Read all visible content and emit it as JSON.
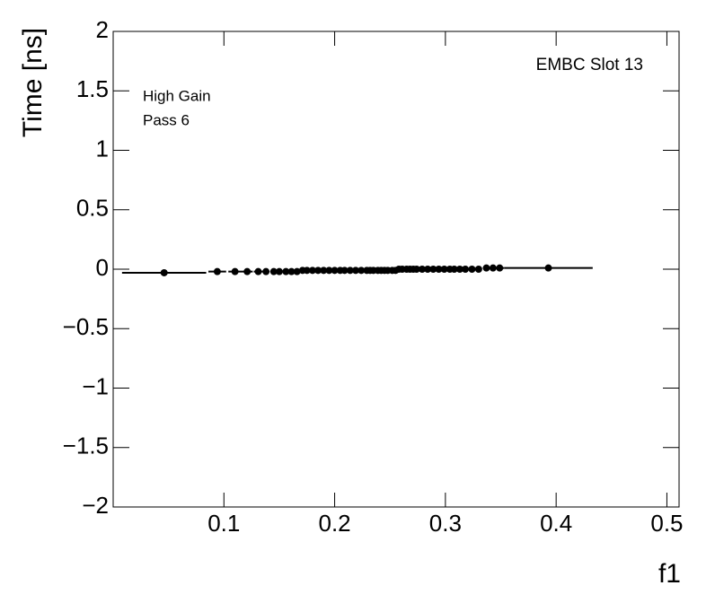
{
  "chart_data": {
    "type": "scatter",
    "y_label": "Time [ns]",
    "x_label": "f1",
    "annotations": [
      "EMBC Slot 13",
      "High Gain",
      "Pass 6"
    ],
    "xlim": [
      0,
      0.511
    ],
    "ylim": [
      -2,
      2
    ],
    "xticks": [
      0.1,
      0.2,
      0.3,
      0.4,
      0.5
    ],
    "yticks": [
      {
        "value": -2,
        "label": "−2"
      },
      {
        "value": -1.5,
        "label": "−1.5"
      },
      {
        "value": -1,
        "label": "−1"
      },
      {
        "value": -0.5,
        "label": "−0.5"
      },
      0,
      0.5,
      1,
      1.5,
      2
    ],
    "series": [
      {
        "color": "#000000",
        "x": [
          0.046,
          0.094,
          0.11,
          0.121,
          0.131,
          0.138,
          0.145,
          0.15,
          0.156,
          0.161,
          0.166,
          0.171,
          0.175,
          0.18,
          0.185,
          0.19,
          0.195,
          0.2,
          0.205,
          0.209,
          0.214,
          0.219,
          0.224,
          0.229,
          0.232,
          0.235,
          0.239,
          0.242,
          0.245,
          0.248,
          0.252,
          0.255,
          0.258,
          0.261,
          0.265,
          0.268,
          0.271,
          0.274,
          0.279,
          0.284,
          0.289,
          0.294,
          0.299,
          0.304,
          0.308,
          0.313,
          0.318,
          0.324,
          0.33,
          0.337,
          0.343,
          0.349,
          0.393
        ],
        "xerr": [
          0.038,
          0.008,
          0.006,
          0.005,
          0.004,
          0.003,
          0.003,
          0.003,
          0.003,
          0.002,
          0.002,
          0.002,
          0.002,
          0.002,
          0.002,
          0.002,
          0.002,
          0.002,
          0.002,
          0.002,
          0.002,
          0.002,
          0.002,
          0.002,
          0.002,
          0.002,
          0.002,
          0.002,
          0.002,
          0.002,
          0.002,
          0.002,
          0.002,
          0.002,
          0.002,
          0.002,
          0.002,
          0.002,
          0.002,
          0.002,
          0.002,
          0.002,
          0.002,
          0.002,
          0.002,
          0.002,
          0.003,
          0.003,
          0.003,
          0.003,
          0.003,
          0.004,
          0.04
        ],
        "values": [
          -0.03,
          -0.02,
          -0.02,
          -0.02,
          -0.02,
          -0.02,
          -0.02,
          -0.02,
          -0.02,
          -0.02,
          -0.02,
          -0.01,
          -0.01,
          -0.01,
          -0.01,
          -0.01,
          -0.01,
          -0.01,
          -0.01,
          -0.01,
          -0.01,
          -0.01,
          -0.01,
          -0.01,
          -0.01,
          -0.01,
          -0.01,
          -0.01,
          -0.01,
          -0.01,
          -0.01,
          -0.01,
          0,
          0,
          0,
          0,
          0,
          0,
          0,
          0,
          0,
          0,
          0,
          0,
          0,
          0,
          0,
          0,
          0,
          0.01,
          0.01,
          0.01,
          0.01
        ]
      }
    ]
  }
}
